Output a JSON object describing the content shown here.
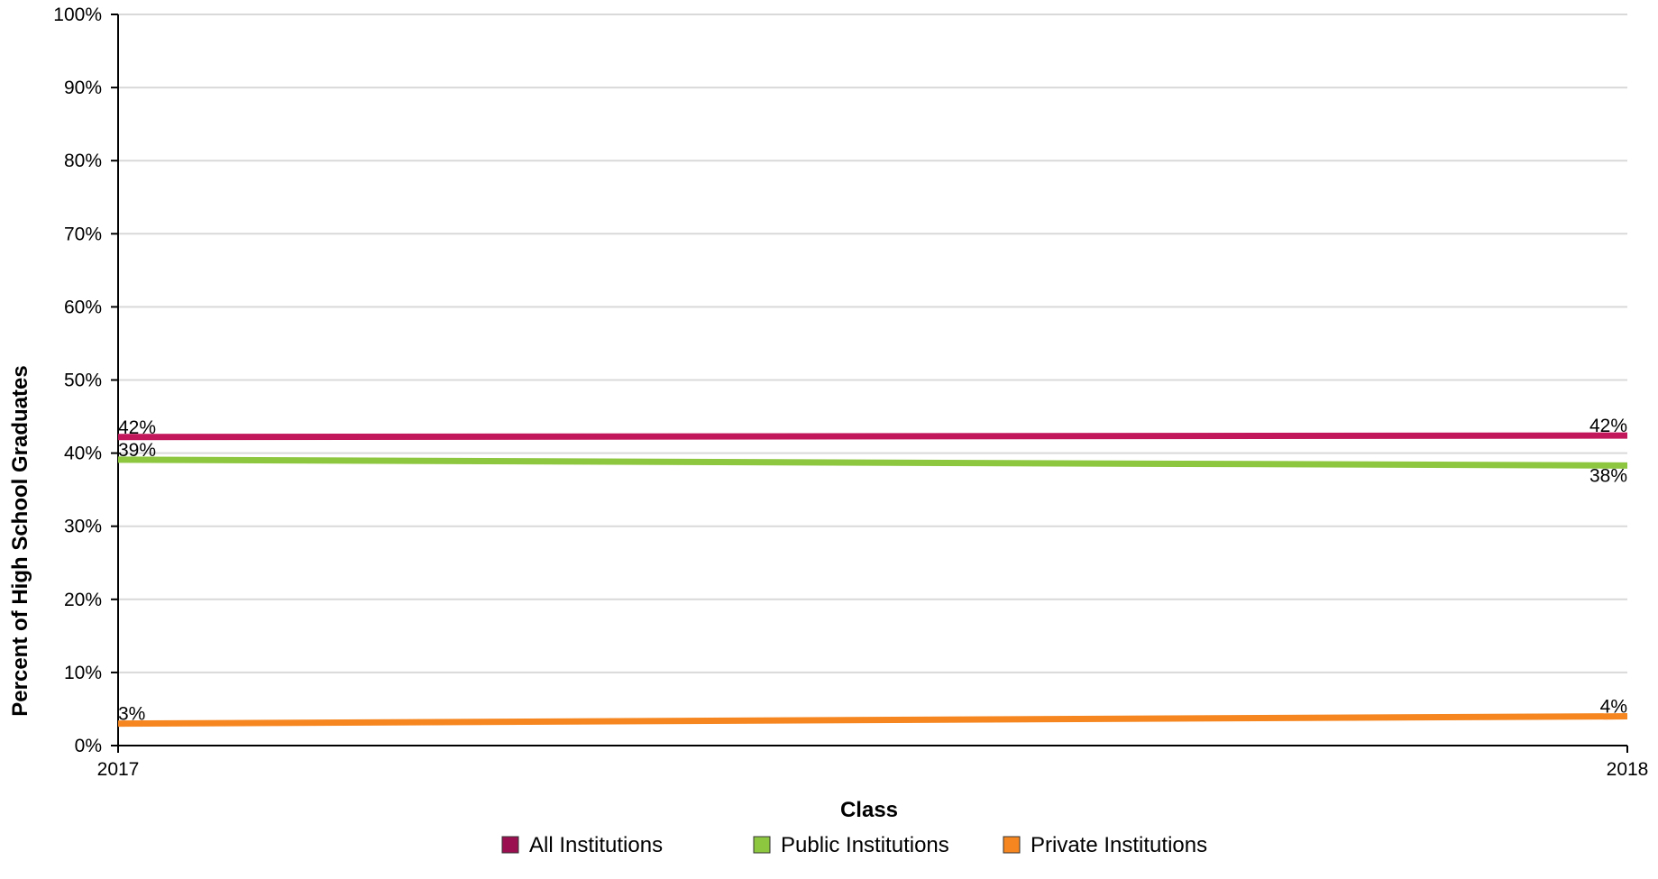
{
  "chart_data": {
    "type": "line",
    "xlabel": "Class",
    "ylabel": "Percent of High School Graduates",
    "x": [
      "2017",
      "2018"
    ],
    "ylim": [
      0,
      100
    ],
    "yticks": [
      "0%",
      "10%",
      "20%",
      "30%",
      "40%",
      "50%",
      "60%",
      "70%",
      "80%",
      "90%",
      "100%"
    ],
    "grid": true,
    "legend_position": "bottom",
    "series": [
      {
        "name": "All Institutions",
        "color": "#c2185b",
        "legend_color": "#990f4f",
        "values": [
          42.2,
          42.4
        ],
        "labels": [
          "42%",
          "42%"
        ]
      },
      {
        "name": "Public Institutions",
        "color": "#8dc63f",
        "legend_color": "#8dc63f",
        "values": [
          39.1,
          38.3
        ],
        "labels": [
          "39%",
          "38%"
        ]
      },
      {
        "name": "Private Institutions",
        "color": "#f6861f",
        "legend_color": "#f6861f",
        "values": [
          3.0,
          4.0
        ],
        "labels": [
          "3%",
          "4%"
        ]
      }
    ]
  }
}
